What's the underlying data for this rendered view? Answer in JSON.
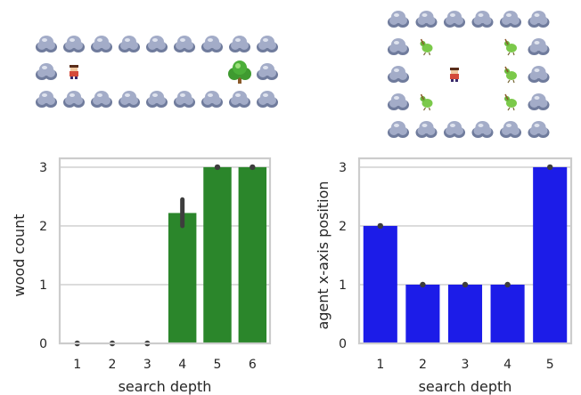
{
  "colors": {
    "wood_bar": "#2b862b",
    "position_bar": "#1c1ce8",
    "error": "#3d3d3d",
    "grid": "#d4d4d4",
    "frame": "#cccccc",
    "rock": "#a3acc8",
    "rock_shade": "#6f7b9c",
    "tree": "#4caf3a",
    "agent": "#d44a3a",
    "bird": "#7bc94a"
  },
  "icons": {
    "rock": "rock-icon",
    "agent": "agent-icon",
    "tree": "tree-icon",
    "bird": "bird-icon"
  },
  "scenes": [
    {
      "cols": 9,
      "rows": 3,
      "cells": [
        "rrrrrrrrr",
        "ra......tr",
        "rrrrrrrrr"
      ]
    },
    {
      "cols": 6,
      "rows": 5,
      "cells": [
        "rrrrrr",
        "rb..br",
        "r.a.br",
        "rb..br",
        "rrrrrr"
      ]
    }
  ],
  "chart_data": [
    {
      "type": "bar",
      "categories": [
        "1",
        "2",
        "3",
        "4",
        "5",
        "6"
      ],
      "values": [
        0,
        0,
        0,
        2.22,
        3,
        3
      ],
      "error_low": [
        0,
        0,
        0,
        2.0,
        3,
        3
      ],
      "error_high": [
        0,
        0,
        0,
        2.45,
        3,
        3
      ],
      "xlabel": "search depth",
      "ylabel": "wood count",
      "ylim": [
        0,
        3.15
      ],
      "yticks": [
        0,
        1,
        2,
        3
      ],
      "grid": true,
      "color": "#2b862b"
    },
    {
      "type": "bar",
      "categories": [
        "1",
        "2",
        "3",
        "4",
        "5"
      ],
      "values": [
        2,
        1,
        1,
        1,
        3
      ],
      "error_low": [
        2,
        1,
        1,
        1,
        3
      ],
      "error_high": [
        2,
        1,
        1,
        1,
        3
      ],
      "xlabel": "search depth",
      "ylabel": "agent x-axis position",
      "ylim": [
        0,
        3.15
      ],
      "yticks": [
        0,
        1,
        2,
        3
      ],
      "grid": true,
      "color": "#1c1ce8"
    }
  ]
}
